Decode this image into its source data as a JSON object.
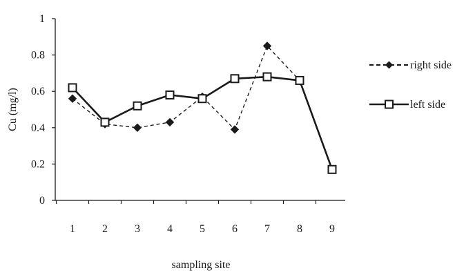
{
  "chart_data": {
    "type": "line",
    "xlabel": "sampling site",
    "ylabel": "Cu (mg/l)",
    "categories": [
      "1",
      "2",
      "3",
      "4",
      "5",
      "6",
      "7",
      "8",
      "9"
    ],
    "ylim": [
      0,
      1
    ],
    "yticks": [
      "0",
      "0.2",
      "0.4",
      "0.6",
      "0.8",
      "1"
    ],
    "grid": false,
    "legend_position": "right",
    "series": [
      {
        "name": "right side",
        "values": [
          0.56,
          0.42,
          0.4,
          0.43,
          0.57,
          0.39,
          0.85,
          0.66,
          0.17
        ],
        "line_style": "dashed",
        "marker": "filled-diamond",
        "color": "#1a1a1a"
      },
      {
        "name": "left side",
        "values": [
          0.62,
          0.43,
          0.52,
          0.58,
          0.56,
          0.67,
          0.68,
          0.66,
          0.17
        ],
        "line_style": "solid",
        "marker": "open-square",
        "color": "#1a1a1a"
      }
    ]
  }
}
